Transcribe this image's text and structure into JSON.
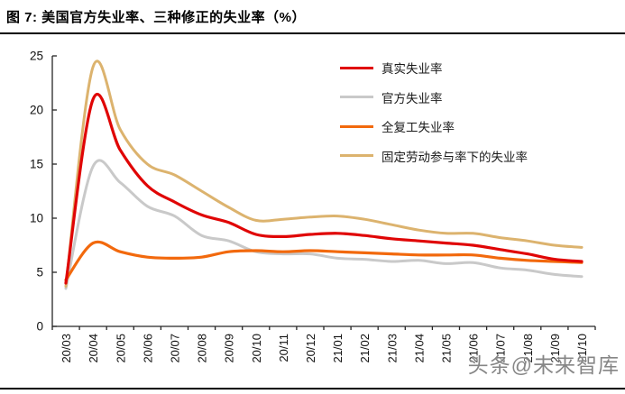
{
  "page": {
    "title": "图 7: 美国官方失业率、三种修正的失业率（%）",
    "watermark": "头条@未来智库"
  },
  "chart_data": {
    "type": "line",
    "title": "美国官方失业率、三种修正的失业率（%）",
    "xlabel": "",
    "ylabel": "",
    "ylim": [
      0,
      25
    ],
    "yticks": [
      0,
      5,
      10,
      15,
      20,
      25
    ],
    "grid": false,
    "smooth": true,
    "legend_position": "top-right-inside",
    "categories": [
      "20/03",
      "20/04",
      "20/05",
      "20/06",
      "20/07",
      "20/08",
      "20/09",
      "20/10",
      "20/11",
      "20/12",
      "21/01",
      "21/02",
      "21/03",
      "21/04",
      "21/05",
      "21/06",
      "21/07",
      "21/08",
      "21/09",
      "21/10"
    ],
    "series": [
      {
        "name": "真实失业率",
        "color": "#e00505",
        "width": 3.2,
        "values": [
          4.0,
          21.0,
          16.3,
          13.0,
          11.5,
          10.3,
          9.6,
          8.5,
          8.3,
          8.5,
          8.6,
          8.4,
          8.1,
          7.9,
          7.7,
          7.5,
          7.1,
          6.7,
          6.2,
          6.0
        ]
      },
      {
        "name": "官方失业率",
        "color": "#c9c9c9",
        "width": 3.0,
        "values": [
          3.5,
          14.8,
          13.3,
          11.1,
          10.2,
          8.4,
          7.9,
          6.9,
          6.7,
          6.7,
          6.3,
          6.2,
          6.0,
          6.1,
          5.8,
          5.9,
          5.4,
          5.2,
          4.8,
          4.6
        ]
      },
      {
        "name": "全复工失业率",
        "color": "#f2690d",
        "width": 3.2,
        "values": [
          4.3,
          7.7,
          6.9,
          6.4,
          6.3,
          6.4,
          6.9,
          7.0,
          6.9,
          7.0,
          6.9,
          6.8,
          6.7,
          6.6,
          6.6,
          6.6,
          6.3,
          6.1,
          6.0,
          5.9
        ]
      },
      {
        "name": "固定劳动参与率下的失业率",
        "color": "#dcb36e",
        "width": 3.0,
        "values": [
          3.7,
          24.0,
          18.2,
          15.0,
          14.0,
          12.5,
          11.0,
          9.8,
          9.9,
          10.1,
          10.2,
          9.9,
          9.4,
          8.9,
          8.6,
          8.6,
          8.2,
          7.9,
          7.5,
          7.3
        ]
      }
    ],
    "axis_color": "#262626",
    "tick_label_color": "#111111"
  }
}
